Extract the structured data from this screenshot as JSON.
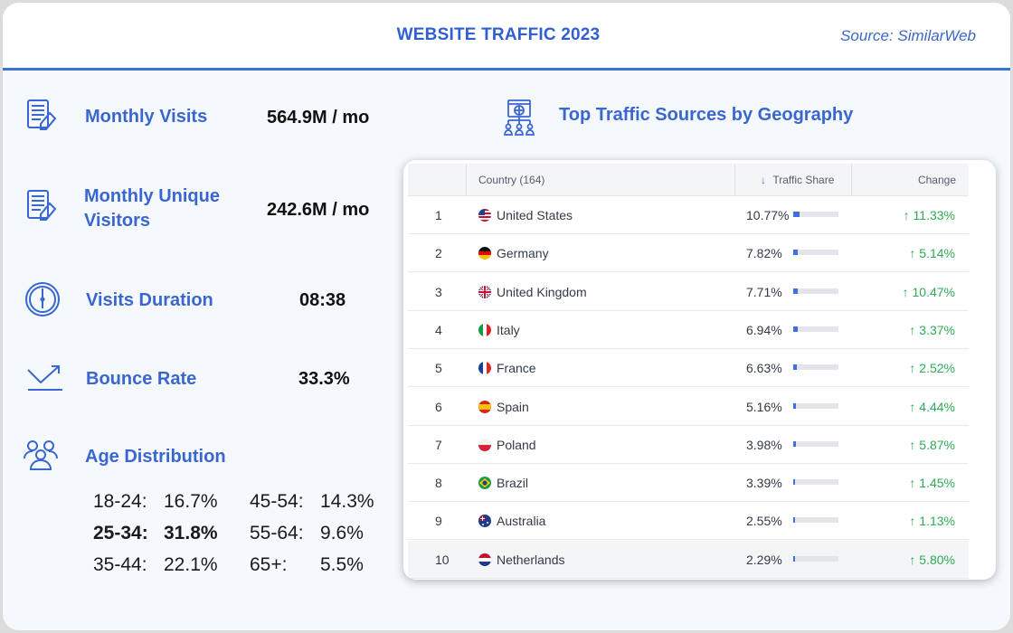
{
  "header": {
    "title": "WEBSITE TRAFFIC 2023",
    "source": "Source: SimilarWeb"
  },
  "metrics": [
    {
      "label": "Monthly Visits",
      "value": "564.9M / mo",
      "icon": "document-icon"
    },
    {
      "label_line1": "Monthly Unique",
      "label_line2": "Visitors",
      "value": "242.6M / mo",
      "icon": "document-icon"
    },
    {
      "label": "Visits Duration",
      "value": "08:38",
      "icon": "clock-icon"
    },
    {
      "label": "Bounce Rate",
      "value": "33.3%",
      "icon": "bounce-arrow-icon"
    },
    {
      "label": "Age Distribution",
      "icon": "people-icon"
    }
  ],
  "age": [
    {
      "range": "18-24:",
      "value": "16.7%"
    },
    {
      "range": "25-34:",
      "value": "31.8%"
    },
    {
      "range": "35-44:",
      "value": "22.1%"
    },
    {
      "range": "45-54:",
      "value": "14.3%"
    },
    {
      "range": "55-64:",
      "value": "9.6%"
    },
    {
      "range": "65+:",
      "value": "5.5%"
    }
  ],
  "geo": {
    "title": "Top Traffic Sources by Geography",
    "icon": "web-network-icon",
    "columns": {
      "country": "Country (164)",
      "share": "Traffic Share",
      "change": "Change",
      "sort_arrow": "↓"
    },
    "rows": [
      {
        "rank": "1",
        "country": "United States",
        "share": "10.77%",
        "share_value": 10.77,
        "change": "↑ 11.33%",
        "flag": "us"
      },
      {
        "rank": "2",
        "country": "Germany",
        "share": "7.82%",
        "share_value": 7.82,
        "change": "↑ 5.14%",
        "flag": "de"
      },
      {
        "rank": "3",
        "country": "United Kingdom",
        "share": "7.71%",
        "share_value": 7.71,
        "change": "↑ 10.47%",
        "flag": "gb"
      },
      {
        "rank": "4",
        "country": "Italy",
        "share": "6.94%",
        "share_value": 6.94,
        "change": "↑ 3.37%",
        "flag": "it"
      },
      {
        "rank": "5",
        "country": "France",
        "share": "6.63%",
        "share_value": 6.63,
        "change": "↑ 2.52%",
        "flag": "fr"
      },
      {
        "rank": "6",
        "country": "Spain",
        "share": "5.16%",
        "share_value": 5.16,
        "change": "↑ 4.44%",
        "flag": "es"
      },
      {
        "rank": "7",
        "country": "Poland",
        "share": "3.98%",
        "share_value": 3.98,
        "change": "↑ 5.87%",
        "flag": "pl"
      },
      {
        "rank": "8",
        "country": "Brazil",
        "share": "3.39%",
        "share_value": 3.39,
        "change": "↑ 1.45%",
        "flag": "br"
      },
      {
        "rank": "9",
        "country": "Australia",
        "share": "2.55%",
        "share_value": 2.55,
        "change": "↑ 1.13%",
        "flag": "au"
      },
      {
        "rank": "10",
        "country": "Netherlands",
        "share": "2.29%",
        "share_value": 2.29,
        "change": "↑ 5.80%",
        "flag": "nl"
      }
    ]
  },
  "colors": {
    "accent": "#3a66cf",
    "up": "#2dab54",
    "bar": "#3f6fe0"
  }
}
